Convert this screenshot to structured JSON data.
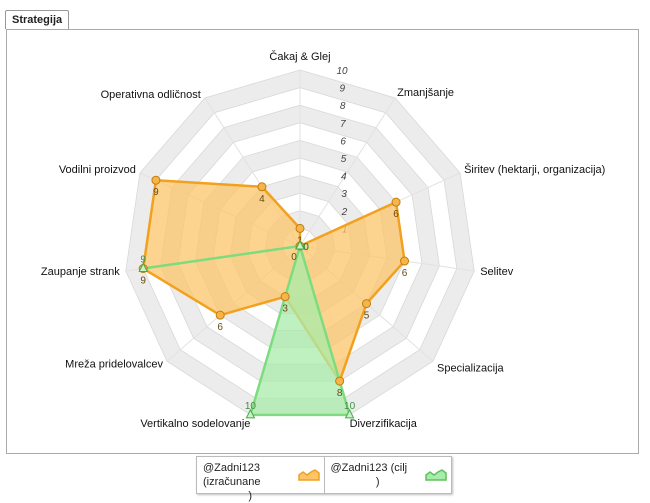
{
  "tab": {
    "label": "Strategija"
  },
  "chart_data": {
    "type": "radar",
    "categories": [
      "Čakaj & Glej",
      "Zmanjšanje",
      "Širitev (hektarji, organizacija)",
      "Selitev",
      "Specializacija",
      "Diverzifikacija",
      "Vertikalno sodelovanje",
      "Mreža pridelovalcev",
      "Zaupanje strank",
      "Vodilni proizvod",
      "Operativna odličnost"
    ],
    "rlim": [
      0,
      10
    ],
    "ticks": [
      "1",
      "2",
      "3",
      "4",
      "5",
      "6",
      "7",
      "8",
      "9",
      "10"
    ],
    "series": [
      {
        "name": "@Zadni123 (izračunane )",
        "color": "#f2a11f",
        "fill": "#fcc56a",
        "values": [
          1,
          0,
          6,
          6,
          5,
          8,
          3,
          6,
          9,
          9,
          4
        ]
      },
      {
        "name": "@Zadni123 (cilj )",
        "color": "#7ddc7d",
        "fill": "#a8ecaa",
        "values": [
          0,
          0,
          0,
          0,
          0,
          10,
          10,
          0,
          9,
          0,
          0
        ]
      }
    ]
  },
  "legend": {
    "item1": {
      "line1": "@Zadni123 (izračunane",
      "line2": ")",
      "swatch_color": "#f2a11f"
    },
    "item2": {
      "line1": "@Zadni123 (cilj",
      "line2": ")",
      "swatch_color": "#7ddc7d"
    }
  }
}
